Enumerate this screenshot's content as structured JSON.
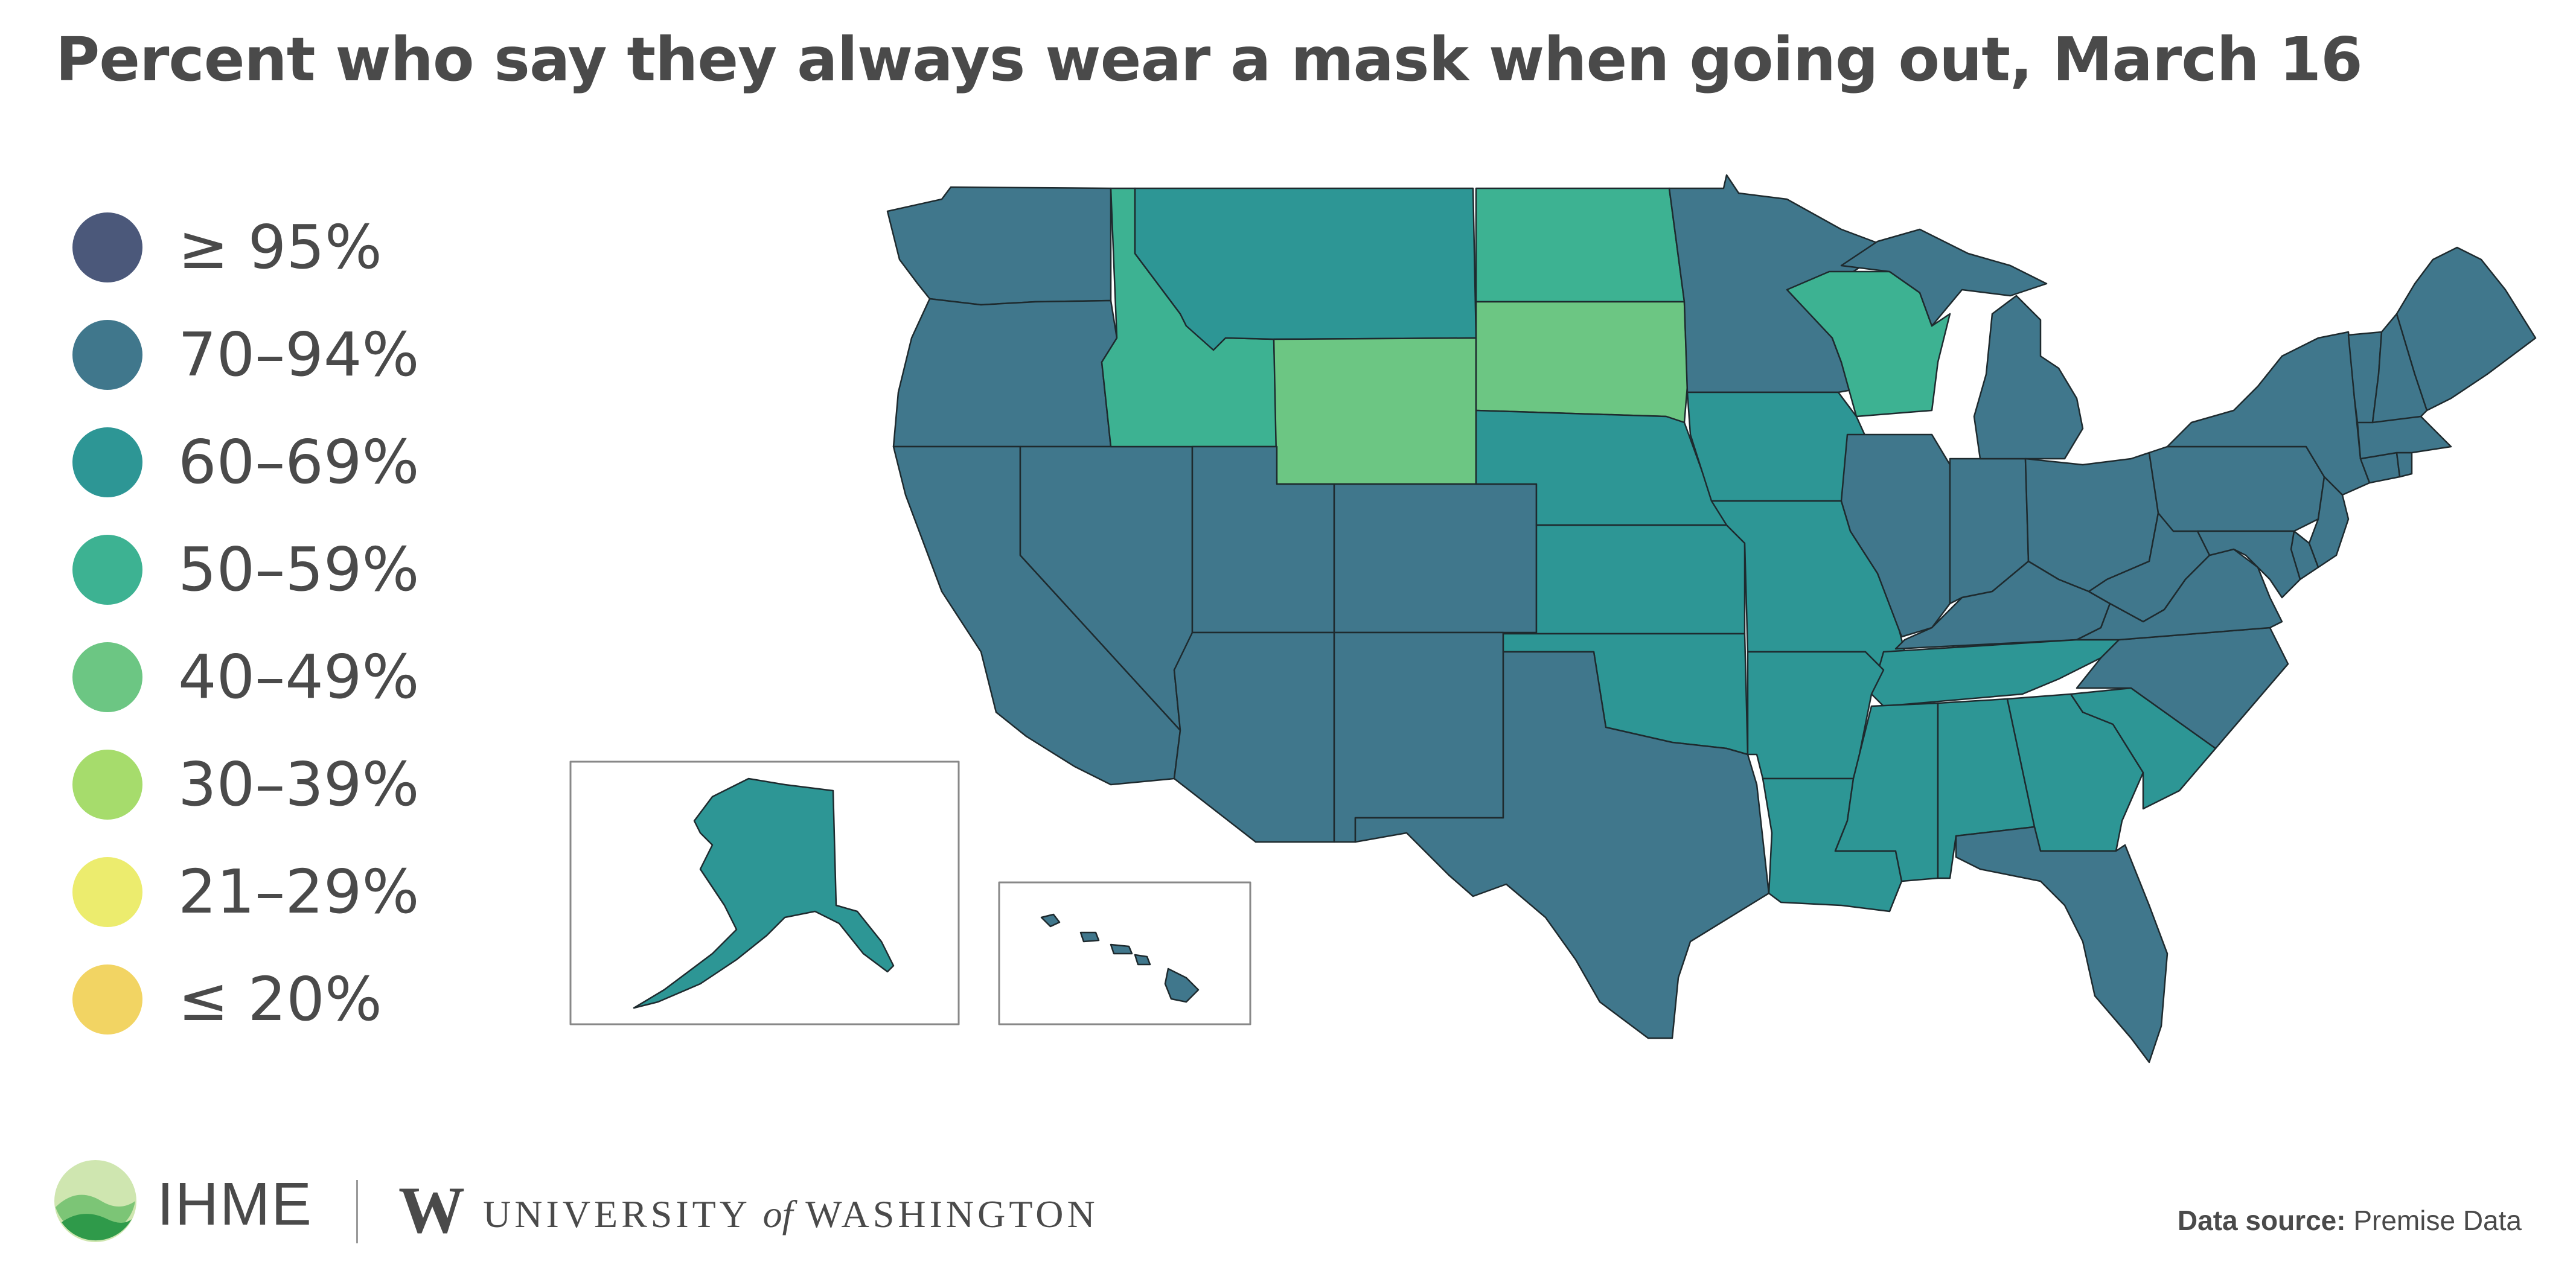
{
  "title": "Percent who say they always wear a mask when going out, March 16",
  "legend": [
    {
      "label": "≥ 95%",
      "color": "#4b587a"
    },
    {
      "label": "70–94%",
      "color": "#40778c"
    },
    {
      "label": "60–69%",
      "color": "#2d9695"
    },
    {
      "label": "50–59%",
      "color": "#3db292"
    },
    {
      "label": "40–49%",
      "color": "#6cc683"
    },
    {
      "label": "30–39%",
      "color": "#a6dc6c"
    },
    {
      "label": "21–29%",
      "color": "#ecec6e"
    },
    {
      "label": "≤ 20%",
      "color": "#f2d463"
    }
  ],
  "map_data": {
    "type": "choropleth",
    "region": "United States",
    "categories": {
      "70-94%": [
        "Washington",
        "Oregon",
        "California",
        "Nevada",
        "Utah",
        "Arizona",
        "Colorado",
        "New Mexico",
        "Texas",
        "Minnesota",
        "Illinois",
        "Indiana",
        "Ohio",
        "Michigan",
        "Kentucky",
        "West Virginia",
        "Virginia",
        "North Carolina",
        "Florida",
        "Pennsylvania",
        "New York",
        "New Jersey",
        "Maryland",
        "Delaware",
        "Connecticut",
        "Rhode Island",
        "Massachusetts",
        "Vermont",
        "New Hampshire",
        "Maine",
        "Hawaii"
      ],
      "60-69%": [
        "Montana",
        "Nebraska",
        "Kansas",
        "Oklahoma",
        "Iowa",
        "Missouri",
        "Arkansas",
        "Louisiana",
        "Mississippi",
        "Alabama",
        "Georgia",
        "Tennessee",
        "South Carolina",
        "Alaska"
      ],
      "50-59%": [
        "Idaho",
        "North Dakota",
        "Wisconsin"
      ],
      "40-49%": [
        "Wyoming",
        "South Dakota"
      ]
    }
  },
  "footer": {
    "ihme": "IHME",
    "uw_logo_letter": "W",
    "uw_name_pre": "UNIVERSITY",
    "uw_name_of": "of",
    "uw_name_post": "WASHINGTON",
    "data_source_label": "Data source:",
    "data_source_value": "Premise Data"
  },
  "colors": {
    "state_border": "#1e2a2e",
    "text": "#4a4a4a",
    "inset_border": "#888888"
  }
}
